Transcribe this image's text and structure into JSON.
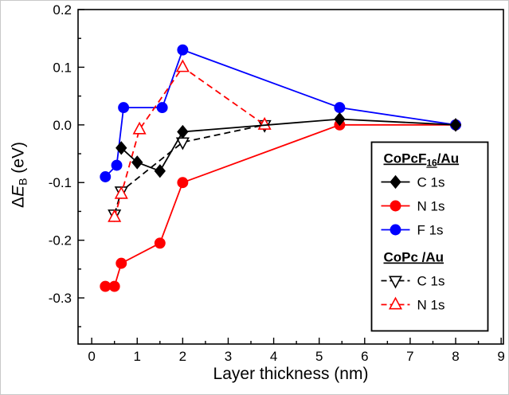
{
  "chart_data": {
    "type": "line",
    "title": "",
    "xlabel": "Layer thickness (nm)",
    "ylabel": "ΔE_B (eV)",
    "ylabel_parts": {
      "delta": "Δ",
      "symbol": "E",
      "sub": "B",
      "unit": " (eV)"
    },
    "xlim": [
      -0.3,
      9.05
    ],
    "ylim": [
      -0.38,
      0.2
    ],
    "xticks": [
      0,
      1,
      2,
      3,
      4,
      5,
      6,
      7,
      8,
      9
    ],
    "yticks": [
      0.2,
      0.1,
      0.0,
      -0.1,
      -0.2,
      -0.3
    ],
    "x_minor_step": 0.5,
    "y_minor_step": 0.05,
    "grid": false,
    "legend_position": "right",
    "colors": {
      "black": "#000000",
      "red": "#ff0000",
      "blue": "#0000ff"
    },
    "series": [
      {
        "id": "copcf16-c1s",
        "group": "CoPcF16/Au",
        "label": "C 1s",
        "color": "#000000",
        "line": "solid",
        "marker": "diamond",
        "fill": "filled",
        "points": [
          [
            0.65,
            -0.04
          ],
          [
            1.0,
            -0.065
          ],
          [
            1.5,
            -0.08
          ],
          [
            2.0,
            -0.012
          ],
          [
            5.45,
            0.01
          ],
          [
            8.0,
            0.0
          ]
        ]
      },
      {
        "id": "copcf16-n1s",
        "group": "CoPcF16/Au",
        "label": "N 1s",
        "color": "#ff0000",
        "line": "solid",
        "marker": "circle",
        "fill": "filled",
        "points": [
          [
            0.3,
            -0.28
          ],
          [
            0.5,
            -0.28
          ],
          [
            0.65,
            -0.24
          ],
          [
            1.5,
            -0.205
          ],
          [
            2.0,
            -0.1
          ],
          [
            5.45,
            0.0
          ],
          [
            8.0,
            0.0
          ]
        ]
      },
      {
        "id": "copcf16-f1s",
        "group": "CoPcF16/Au",
        "label": "F 1s",
        "color": "#0000ff",
        "line": "solid",
        "marker": "circle",
        "fill": "filled",
        "points": [
          [
            0.3,
            -0.09
          ],
          [
            0.55,
            -0.07
          ],
          [
            0.7,
            0.03
          ],
          [
            1.55,
            0.03
          ],
          [
            2.0,
            0.13
          ],
          [
            5.45,
            0.03
          ],
          [
            8.0,
            0.0
          ]
        ]
      },
      {
        "id": "copc-c1s",
        "group": "CoPc/Au",
        "label": "C 1s",
        "color": "#000000",
        "line": "dashed",
        "marker": "triangle-down",
        "fill": "open",
        "points": [
          [
            0.5,
            -0.155
          ],
          [
            0.65,
            -0.115
          ],
          [
            2.0,
            -0.03
          ],
          [
            3.8,
            0.0
          ]
        ]
      },
      {
        "id": "copc-n1s",
        "group": "CoPc/Au",
        "label": "N 1s",
        "color": "#ff0000",
        "line": "dashed",
        "marker": "triangle-up",
        "fill": "open",
        "points": [
          [
            0.5,
            -0.16
          ],
          [
            0.65,
            -0.12
          ],
          [
            1.05,
            -0.008
          ],
          [
            2.0,
            0.1
          ],
          [
            3.8,
            0.0
          ]
        ]
      }
    ],
    "legend": {
      "groups": [
        {
          "base": "CoPcF",
          "sub": "16",
          "suffix": "/Au",
          "series": [
            0,
            1,
            2
          ]
        },
        {
          "base": "CoPc",
          "sub": "",
          "suffix": " /Au",
          "series": [
            3,
            4
          ]
        }
      ]
    }
  }
}
